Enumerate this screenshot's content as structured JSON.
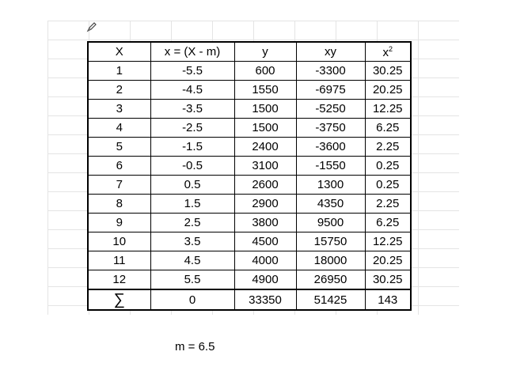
{
  "table": {
    "headers": [
      "X",
      "x = (X - m)",
      "y",
      "xy",
      "x",
      "2"
    ],
    "rows": [
      [
        "1",
        "-5.5",
        "600",
        "-3300",
        "30.25"
      ],
      [
        "2",
        "-4.5",
        "1550",
        "-6975",
        "20.25"
      ],
      [
        "3",
        "-3.5",
        "1500",
        "-5250",
        "12.25"
      ],
      [
        "4",
        "-2.5",
        "1500",
        "-3750",
        "6.25"
      ],
      [
        "5",
        "-1.5",
        "2400",
        "-3600",
        "2.25"
      ],
      [
        "6",
        "-0.5",
        "3100",
        "-1550",
        "0.25"
      ],
      [
        "7",
        "0.5",
        "2600",
        "1300",
        "0.25"
      ],
      [
        "8",
        "1.5",
        "2900",
        "4350",
        "2.25"
      ],
      [
        "9",
        "2.5",
        "3800",
        "9500",
        "6.25"
      ],
      [
        "10",
        "3.5",
        "4500",
        "15750",
        "12.25"
      ],
      [
        "11",
        "4.5",
        "4000",
        "18000",
        "20.25"
      ],
      [
        "12",
        "5.5",
        "4900",
        "26950",
        "30.25"
      ]
    ],
    "sum_row": [
      "∑",
      "0",
      "33350",
      "51425",
      "143"
    ]
  },
  "note": "m = 6.5",
  "icons": {
    "corner": "pen-icon"
  }
}
